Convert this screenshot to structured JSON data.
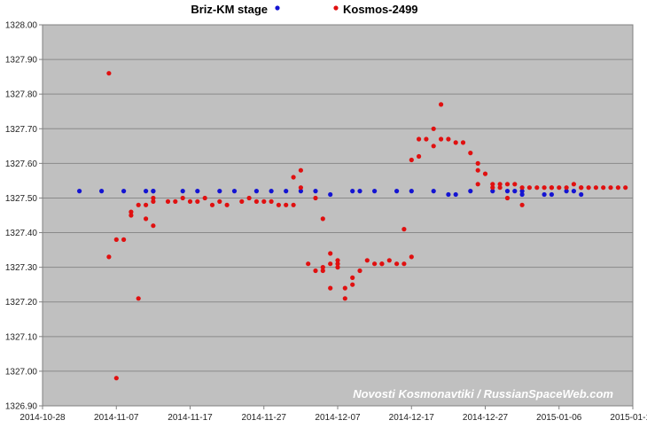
{
  "chart_data": {
    "type": "scatter",
    "title": "",
    "xlabel": "",
    "ylabel": "",
    "xlim": [
      "2014-10-28",
      "2015-01-16"
    ],
    "ylim": [
      1326.9,
      1328.0
    ],
    "x_tick_labels": [
      "2014-10-28",
      "2014-11-07",
      "2014-11-17",
      "2014-11-27",
      "2014-12-07",
      "2014-12-17",
      "2014-12-27",
      "2015-01-06",
      "2015-01-16"
    ],
    "y_tick_labels": [
      "1326.90",
      "1327.00",
      "1327.10",
      "1327.20",
      "1327.30",
      "1327.40",
      "1327.50",
      "1327.60",
      "1327.70",
      "1327.80",
      "1327.90",
      "1328.00"
    ],
    "grid": true,
    "legend_position": "top",
    "annotation": "Novosti Kosmonavtiki / RussianSpaceWeb.com",
    "series": [
      {
        "name": "Briz-KM stage",
        "color": "#1414d2",
        "points": [
          [
            "2014-11-02",
            1327.52
          ],
          [
            "2014-11-05",
            1327.52
          ],
          [
            "2014-11-08",
            1327.52
          ],
          [
            "2014-11-11",
            1327.52
          ],
          [
            "2014-11-12",
            1327.52
          ],
          [
            "2014-11-12",
            1327.52
          ],
          [
            "2014-11-16",
            1327.52
          ],
          [
            "2014-11-18",
            1327.52
          ],
          [
            "2014-11-21",
            1327.52
          ],
          [
            "2014-11-23",
            1327.52
          ],
          [
            "2014-11-26",
            1327.52
          ],
          [
            "2014-11-28",
            1327.52
          ],
          [
            "2014-11-30",
            1327.52
          ],
          [
            "2014-12-02",
            1327.52
          ],
          [
            "2014-12-04",
            1327.52
          ],
          [
            "2014-12-06",
            1327.51
          ],
          [
            "2014-12-09",
            1327.52
          ],
          [
            "2014-12-10",
            1327.52
          ],
          [
            "2014-12-12",
            1327.52
          ],
          [
            "2014-12-15",
            1327.52
          ],
          [
            "2014-12-17",
            1327.52
          ],
          [
            "2014-12-20",
            1327.52
          ],
          [
            "2014-12-22",
            1327.51
          ],
          [
            "2014-12-23",
            1327.51
          ],
          [
            "2014-12-25",
            1327.52
          ],
          [
            "2014-12-28",
            1327.52
          ],
          [
            "2014-12-30",
            1327.52
          ],
          [
            "2014-12-31",
            1327.52
          ],
          [
            "2015-01-01",
            1327.52
          ],
          [
            "2015-01-01",
            1327.51
          ],
          [
            "2015-01-04",
            1327.51
          ],
          [
            "2015-01-05",
            1327.51
          ],
          [
            "2015-01-07",
            1327.52
          ],
          [
            "2015-01-08",
            1327.52
          ],
          [
            "2015-01-09",
            1327.51
          ]
        ]
      },
      {
        "name": "Kosmos-2499",
        "color": "#e01010",
        "points": [
          [
            "2014-11-06",
            1327.86
          ],
          [
            "2014-11-06",
            1327.33
          ],
          [
            "2014-11-07",
            1326.98
          ],
          [
            "2014-11-07",
            1327.38
          ],
          [
            "2014-11-08",
            1327.38
          ],
          [
            "2014-11-09",
            1327.45
          ],
          [
            "2014-11-09",
            1327.46
          ],
          [
            "2014-11-10",
            1327.48
          ],
          [
            "2014-11-10",
            1327.21
          ],
          [
            "2014-11-11",
            1327.48
          ],
          [
            "2014-11-11",
            1327.44
          ],
          [
            "2014-11-12",
            1327.42
          ],
          [
            "2014-11-12",
            1327.49
          ],
          [
            "2014-11-12",
            1327.5
          ],
          [
            "2014-11-14",
            1327.49
          ],
          [
            "2014-11-15",
            1327.49
          ],
          [
            "2014-11-16",
            1327.5
          ],
          [
            "2014-11-17",
            1327.49
          ],
          [
            "2014-11-18",
            1327.49
          ],
          [
            "2014-11-19",
            1327.5
          ],
          [
            "2014-11-20",
            1327.48
          ],
          [
            "2014-11-21",
            1327.49
          ],
          [
            "2014-11-22",
            1327.48
          ],
          [
            "2014-11-24",
            1327.49
          ],
          [
            "2014-11-25",
            1327.5
          ],
          [
            "2014-11-26",
            1327.49
          ],
          [
            "2014-11-27",
            1327.49
          ],
          [
            "2014-11-28",
            1327.49
          ],
          [
            "2014-11-29",
            1327.48
          ],
          [
            "2014-11-30",
            1327.48
          ],
          [
            "2014-12-01",
            1327.48
          ],
          [
            "2014-12-01",
            1327.56
          ],
          [
            "2014-12-02",
            1327.53
          ],
          [
            "2014-12-02",
            1327.58
          ],
          [
            "2014-12-03",
            1327.31
          ],
          [
            "2014-12-04",
            1327.5
          ],
          [
            "2014-12-04",
            1327.29
          ],
          [
            "2014-12-05",
            1327.29
          ],
          [
            "2014-12-05",
            1327.3
          ],
          [
            "2014-12-05",
            1327.44
          ],
          [
            "2014-12-06",
            1327.31
          ],
          [
            "2014-12-06",
            1327.34
          ],
          [
            "2014-12-06",
            1327.24
          ],
          [
            "2014-12-07",
            1327.3
          ],
          [
            "2014-12-07",
            1327.32
          ],
          [
            "2014-12-07",
            1327.31
          ],
          [
            "2014-12-08",
            1327.21
          ],
          [
            "2014-12-08",
            1327.24
          ],
          [
            "2014-12-09",
            1327.25
          ],
          [
            "2014-12-09",
            1327.27
          ],
          [
            "2014-12-10",
            1327.29
          ],
          [
            "2014-12-11",
            1327.32
          ],
          [
            "2014-12-12",
            1327.31
          ],
          [
            "2014-12-13",
            1327.31
          ],
          [
            "2014-12-13",
            1327.31
          ],
          [
            "2014-12-14",
            1327.32
          ],
          [
            "2014-12-15",
            1327.31
          ],
          [
            "2014-12-16",
            1327.31
          ],
          [
            "2014-12-16",
            1327.41
          ],
          [
            "2014-12-17",
            1327.33
          ],
          [
            "2014-12-17",
            1327.61
          ],
          [
            "2014-12-18",
            1327.62
          ],
          [
            "2014-12-18",
            1327.67
          ],
          [
            "2014-12-19",
            1327.67
          ],
          [
            "2014-12-20",
            1327.65
          ],
          [
            "2014-12-20",
            1327.7
          ],
          [
            "2014-12-21",
            1327.67
          ],
          [
            "2014-12-21",
            1327.77
          ],
          [
            "2014-12-22",
            1327.67
          ],
          [
            "2014-12-23",
            1327.66
          ],
          [
            "2014-12-24",
            1327.66
          ],
          [
            "2014-12-25",
            1327.63
          ],
          [
            "2014-12-26",
            1327.58
          ],
          [
            "2014-12-26",
            1327.6
          ],
          [
            "2014-12-27",
            1327.57
          ],
          [
            "2014-12-26",
            1327.54
          ],
          [
            "2014-12-28",
            1327.53
          ],
          [
            "2014-12-28",
            1327.54
          ],
          [
            "2014-12-29",
            1327.54
          ],
          [
            "2014-12-29",
            1327.53
          ],
          [
            "2014-12-30",
            1327.54
          ],
          [
            "2014-12-30",
            1327.5
          ],
          [
            "2014-12-31",
            1327.54
          ],
          [
            "2015-01-01",
            1327.48
          ],
          [
            "2015-01-01",
            1327.53
          ],
          [
            "2015-01-02",
            1327.53
          ],
          [
            "2015-01-03",
            1327.53
          ],
          [
            "2015-01-04",
            1327.53
          ],
          [
            "2015-01-05",
            1327.53
          ],
          [
            "2015-01-05",
            1327.53
          ],
          [
            "2015-01-06",
            1327.53
          ],
          [
            "2015-01-07",
            1327.53
          ],
          [
            "2015-01-08",
            1327.54
          ],
          [
            "2015-01-09",
            1327.53
          ],
          [
            "2015-01-09",
            1327.53
          ],
          [
            "2015-01-10",
            1327.53
          ],
          [
            "2015-01-11",
            1327.53
          ],
          [
            "2015-01-12",
            1327.53
          ],
          [
            "2015-01-13",
            1327.53
          ],
          [
            "2015-01-14",
            1327.53
          ],
          [
            "2015-01-15",
            1327.53
          ]
        ]
      }
    ]
  }
}
